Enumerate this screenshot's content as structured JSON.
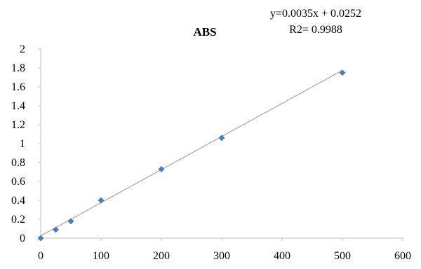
{
  "chart_data": {
    "type": "scatter",
    "title": "ABS",
    "annotations": {
      "equation": "y=0.0035x + 0.0252",
      "r2": "R2= 0.9988"
    },
    "xlabel": "",
    "ylabel": "",
    "xlim": [
      0,
      600
    ],
    "ylim": [
      0,
      2
    ],
    "xticks": [
      "0",
      "100",
      "200",
      "300",
      "400",
      "500",
      "600"
    ],
    "yticks": [
      "0",
      "0.2",
      "0.4",
      "0.6",
      "0.8",
      "1",
      "1.2",
      "1.4",
      "1.6",
      "1.8",
      "2"
    ],
    "grid": false,
    "series": [
      {
        "x": [
          0,
          25,
          50,
          100,
          200,
          300,
          500
        ],
        "y": [
          0.0,
          0.09,
          0.18,
          0.4,
          0.73,
          1.06,
          1.75
        ]
      }
    ],
    "trendline": {
      "type": "linear",
      "slope": 0.0035,
      "intercept": 0.0252
    },
    "colors": {
      "marker": "#4a7ebb",
      "trendline": "#a6a6a6",
      "axis": "#bfbfbf"
    }
  }
}
